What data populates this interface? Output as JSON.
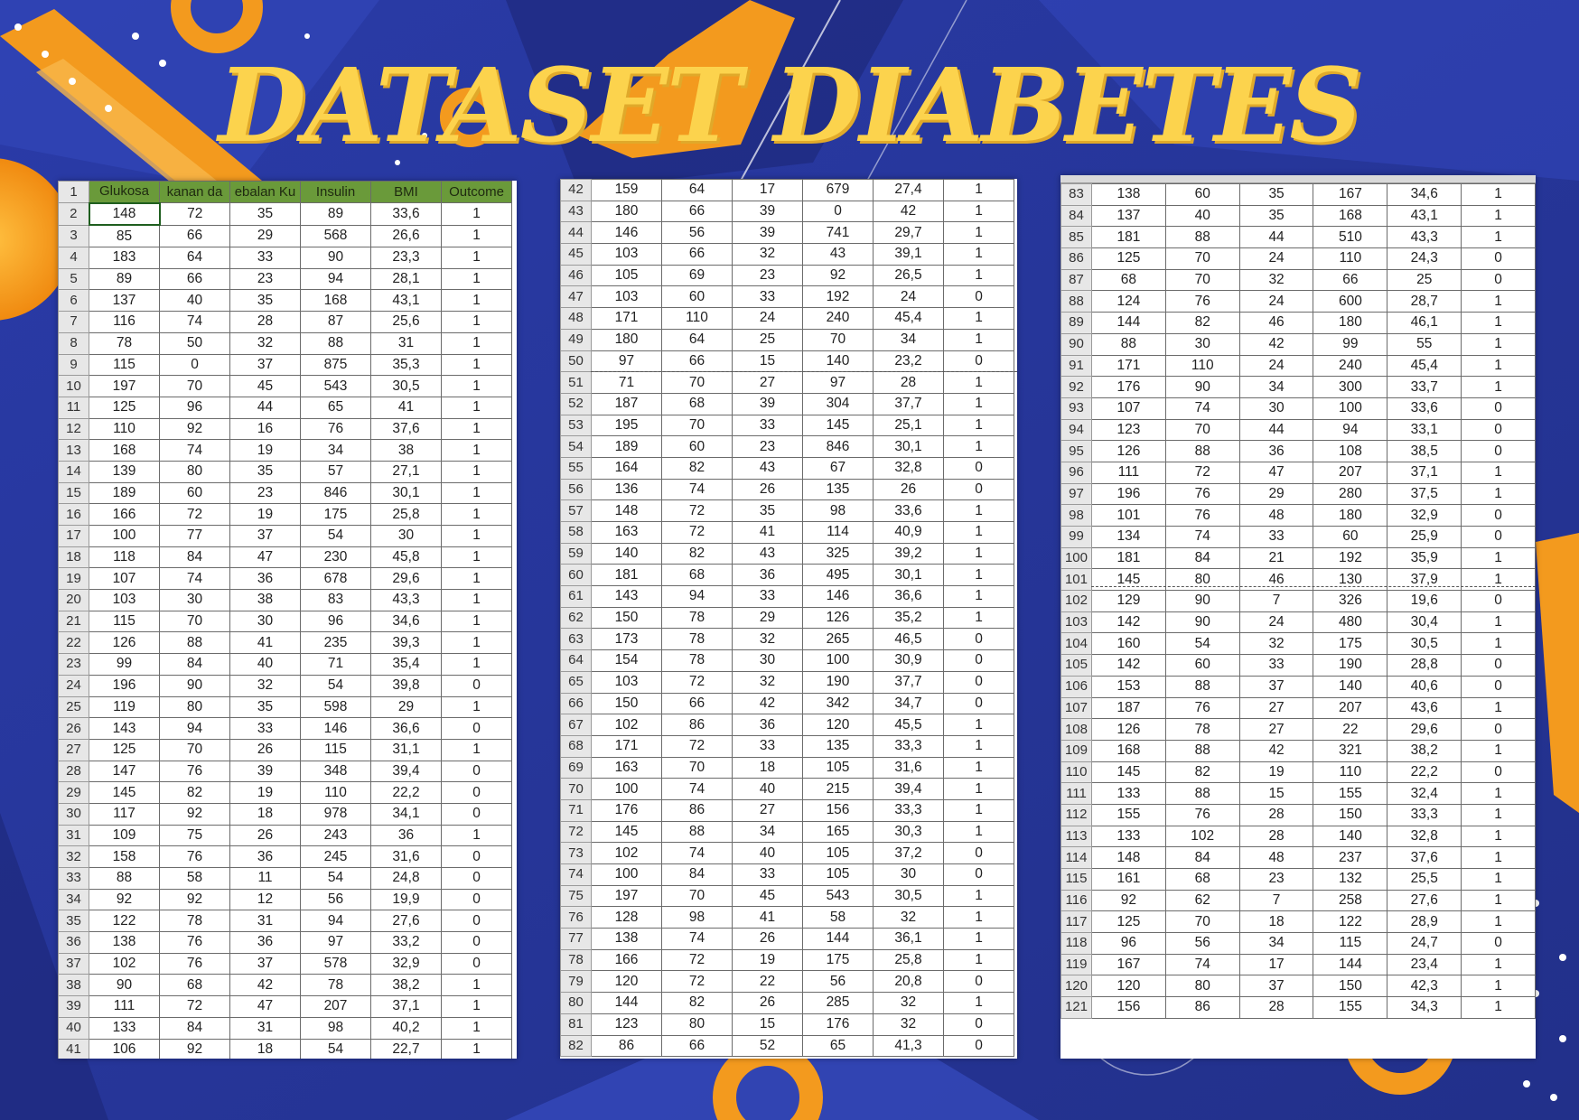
{
  "title": "DATASET DIABETES",
  "colors": {
    "background": "#2b3a9c",
    "title": "#fcd34d",
    "header_fill": "#6a9a3a",
    "accent_orange": "#f39a1e"
  },
  "sheet1": {
    "headers": [
      "Glukosa",
      "kanan da",
      "ebalan Ku",
      "Insulin",
      "BMI",
      "Outcome"
    ],
    "header_row": "1",
    "rows": [
      [
        "2",
        "148",
        "72",
        "35",
        "89",
        "33,6",
        "1"
      ],
      [
        "3",
        "85",
        "66",
        "29",
        "568",
        "26,6",
        "1"
      ],
      [
        "4",
        "183",
        "64",
        "33",
        "90",
        "23,3",
        "1"
      ],
      [
        "5",
        "89",
        "66",
        "23",
        "94",
        "28,1",
        "1"
      ],
      [
        "6",
        "137",
        "40",
        "35",
        "168",
        "43,1",
        "1"
      ],
      [
        "7",
        "116",
        "74",
        "28",
        "87",
        "25,6",
        "1"
      ],
      [
        "8",
        "78",
        "50",
        "32",
        "88",
        "31",
        "1"
      ],
      [
        "9",
        "115",
        "0",
        "37",
        "875",
        "35,3",
        "1"
      ],
      [
        "10",
        "197",
        "70",
        "45",
        "543",
        "30,5",
        "1"
      ],
      [
        "11",
        "125",
        "96",
        "44",
        "65",
        "41",
        "1"
      ],
      [
        "12",
        "110",
        "92",
        "16",
        "76",
        "37,6",
        "1"
      ],
      [
        "13",
        "168",
        "74",
        "19",
        "34",
        "38",
        "1"
      ],
      [
        "14",
        "139",
        "80",
        "35",
        "57",
        "27,1",
        "1"
      ],
      [
        "15",
        "189",
        "60",
        "23",
        "846",
        "30,1",
        "1"
      ],
      [
        "16",
        "166",
        "72",
        "19",
        "175",
        "25,8",
        "1"
      ],
      [
        "17",
        "100",
        "77",
        "37",
        "54",
        "30",
        "1"
      ],
      [
        "18",
        "118",
        "84",
        "47",
        "230",
        "45,8",
        "1"
      ],
      [
        "19",
        "107",
        "74",
        "36",
        "678",
        "29,6",
        "1"
      ],
      [
        "20",
        "103",
        "30",
        "38",
        "83",
        "43,3",
        "1"
      ],
      [
        "21",
        "115",
        "70",
        "30",
        "96",
        "34,6",
        "1"
      ],
      [
        "22",
        "126",
        "88",
        "41",
        "235",
        "39,3",
        "1"
      ],
      [
        "23",
        "99",
        "84",
        "40",
        "71",
        "35,4",
        "1"
      ],
      [
        "24",
        "196",
        "90",
        "32",
        "54",
        "39,8",
        "0"
      ],
      [
        "25",
        "119",
        "80",
        "35",
        "598",
        "29",
        "1"
      ],
      [
        "26",
        "143",
        "94",
        "33",
        "146",
        "36,6",
        "0"
      ],
      [
        "27",
        "125",
        "70",
        "26",
        "115",
        "31,1",
        "1"
      ],
      [
        "28",
        "147",
        "76",
        "39",
        "348",
        "39,4",
        "0"
      ],
      [
        "29",
        "145",
        "82",
        "19",
        "110",
        "22,2",
        "0"
      ],
      [
        "30",
        "117",
        "92",
        "18",
        "978",
        "34,1",
        "0"
      ],
      [
        "31",
        "109",
        "75",
        "26",
        "243",
        "36",
        "1"
      ],
      [
        "32",
        "158",
        "76",
        "36",
        "245",
        "31,6",
        "0"
      ],
      [
        "33",
        "88",
        "58",
        "11",
        "54",
        "24,8",
        "0"
      ],
      [
        "34",
        "92",
        "92",
        "12",
        "56",
        "19,9",
        "0"
      ],
      [
        "35",
        "122",
        "78",
        "31",
        "94",
        "27,6",
        "0"
      ],
      [
        "36",
        "138",
        "76",
        "36",
        "97",
        "33,2",
        "0"
      ],
      [
        "37",
        "102",
        "76",
        "37",
        "578",
        "32,9",
        "0"
      ],
      [
        "38",
        "90",
        "68",
        "42",
        "78",
        "38,2",
        "1"
      ],
      [
        "39",
        "111",
        "72",
        "47",
        "207",
        "37,1",
        "1"
      ],
      [
        "40",
        "133",
        "84",
        "31",
        "98",
        "40,2",
        "1"
      ],
      [
        "41",
        "106",
        "92",
        "18",
        "54",
        "22,7",
        "1"
      ]
    ]
  },
  "sheet2": {
    "rows": [
      [
        "42",
        "159",
        "64",
        "17",
        "679",
        "27,4",
        "1"
      ],
      [
        "43",
        "180",
        "66",
        "39",
        "0",
        "42",
        "1"
      ],
      [
        "44",
        "146",
        "56",
        "39",
        "741",
        "29,7",
        "1"
      ],
      [
        "45",
        "103",
        "66",
        "32",
        "43",
        "39,1",
        "1"
      ],
      [
        "46",
        "105",
        "69",
        "23",
        "92",
        "26,5",
        "1"
      ],
      [
        "47",
        "103",
        "60",
        "33",
        "192",
        "24",
        "0"
      ],
      [
        "48",
        "171",
        "110",
        "24",
        "240",
        "45,4",
        "1"
      ],
      [
        "49",
        "180",
        "64",
        "25",
        "70",
        "34",
        "1"
      ],
      [
        "50",
        "97",
        "66",
        "15",
        "140",
        "23,2",
        "0"
      ],
      [
        "51",
        "71",
        "70",
        "27",
        "97",
        "28",
        "1"
      ],
      [
        "52",
        "187",
        "68",
        "39",
        "304",
        "37,7",
        "1"
      ],
      [
        "53",
        "195",
        "70",
        "33",
        "145",
        "25,1",
        "1"
      ],
      [
        "54",
        "189",
        "60",
        "23",
        "846",
        "30,1",
        "1"
      ],
      [
        "55",
        "164",
        "82",
        "43",
        "67",
        "32,8",
        "0"
      ],
      [
        "56",
        "136",
        "74",
        "26",
        "135",
        "26",
        "0"
      ],
      [
        "57",
        "148",
        "72",
        "35",
        "98",
        "33,6",
        "1"
      ],
      [
        "58",
        "163",
        "72",
        "41",
        "114",
        "40,9",
        "1"
      ],
      [
        "59",
        "140",
        "82",
        "43",
        "325",
        "39,2",
        "1"
      ],
      [
        "60",
        "181",
        "68",
        "36",
        "495",
        "30,1",
        "1"
      ],
      [
        "61",
        "143",
        "94",
        "33",
        "146",
        "36,6",
        "1"
      ],
      [
        "62",
        "150",
        "78",
        "29",
        "126",
        "35,2",
        "1"
      ],
      [
        "63",
        "173",
        "78",
        "32",
        "265",
        "46,5",
        "0"
      ],
      [
        "64",
        "154",
        "78",
        "30",
        "100",
        "30,9",
        "0"
      ],
      [
        "65",
        "103",
        "72",
        "32",
        "190",
        "37,7",
        "0"
      ],
      [
        "66",
        "150",
        "66",
        "42",
        "342",
        "34,7",
        "0"
      ],
      [
        "67",
        "102",
        "86",
        "36",
        "120",
        "45,5",
        "1"
      ],
      [
        "68",
        "171",
        "72",
        "33",
        "135",
        "33,3",
        "1"
      ],
      [
        "69",
        "163",
        "70",
        "18",
        "105",
        "31,6",
        "1"
      ],
      [
        "70",
        "100",
        "74",
        "40",
        "215",
        "39,4",
        "1"
      ],
      [
        "71",
        "176",
        "86",
        "27",
        "156",
        "33,3",
        "1"
      ],
      [
        "72",
        "145",
        "88",
        "34",
        "165",
        "30,3",
        "1"
      ],
      [
        "73",
        "102",
        "74",
        "40",
        "105",
        "37,2",
        "0"
      ],
      [
        "74",
        "100",
        "84",
        "33",
        "105",
        "30",
        "0"
      ],
      [
        "75",
        "197",
        "70",
        "45",
        "543",
        "30,5",
        "1"
      ],
      [
        "76",
        "128",
        "98",
        "41",
        "58",
        "32",
        "1"
      ],
      [
        "77",
        "138",
        "74",
        "26",
        "144",
        "36,1",
        "1"
      ],
      [
        "78",
        "166",
        "72",
        "19",
        "175",
        "25,8",
        "1"
      ],
      [
        "79",
        "120",
        "72",
        "22",
        "56",
        "20,8",
        "0"
      ],
      [
        "80",
        "144",
        "82",
        "26",
        "285",
        "32",
        "1"
      ],
      [
        "81",
        "123",
        "80",
        "15",
        "176",
        "32",
        "0"
      ],
      [
        "82",
        "86",
        "66",
        "52",
        "65",
        "41,3",
        "0"
      ]
    ]
  },
  "sheet3": {
    "rows": [
      [
        "83",
        "138",
        "60",
        "35",
        "167",
        "34,6",
        "1"
      ],
      [
        "84",
        "137",
        "40",
        "35",
        "168",
        "43,1",
        "1"
      ],
      [
        "85",
        "181",
        "88",
        "44",
        "510",
        "43,3",
        "1"
      ],
      [
        "86",
        "125",
        "70",
        "24",
        "110",
        "24,3",
        "0"
      ],
      [
        "87",
        "68",
        "70",
        "32",
        "66",
        "25",
        "0"
      ],
      [
        "88",
        "124",
        "76",
        "24",
        "600",
        "28,7",
        "1"
      ],
      [
        "89",
        "144",
        "82",
        "46",
        "180",
        "46,1",
        "1"
      ],
      [
        "90",
        "88",
        "30",
        "42",
        "99",
        "55",
        "1"
      ],
      [
        "91",
        "171",
        "110",
        "24",
        "240",
        "45,4",
        "1"
      ],
      [
        "92",
        "176",
        "90",
        "34",
        "300",
        "33,7",
        "1"
      ],
      [
        "93",
        "107",
        "74",
        "30",
        "100",
        "33,6",
        "0"
      ],
      [
        "94",
        "123",
        "70",
        "44",
        "94",
        "33,1",
        "0"
      ],
      [
        "95",
        "126",
        "88",
        "36",
        "108",
        "38,5",
        "0"
      ],
      [
        "96",
        "111",
        "72",
        "47",
        "207",
        "37,1",
        "1"
      ],
      [
        "97",
        "196",
        "76",
        "29",
        "280",
        "37,5",
        "1"
      ],
      [
        "98",
        "101",
        "76",
        "48",
        "180",
        "32,9",
        "0"
      ],
      [
        "99",
        "134",
        "74",
        "33",
        "60",
        "25,9",
        "0"
      ],
      [
        "100",
        "181",
        "84",
        "21",
        "192",
        "35,9",
        "1"
      ],
      [
        "101",
        "145",
        "80",
        "46",
        "130",
        "37,9",
        "1"
      ],
      [
        "102",
        "129",
        "90",
        "7",
        "326",
        "19,6",
        "0"
      ],
      [
        "103",
        "142",
        "90",
        "24",
        "480",
        "30,4",
        "1"
      ],
      [
        "104",
        "160",
        "54",
        "32",
        "175",
        "30,5",
        "1"
      ],
      [
        "105",
        "142",
        "60",
        "33",
        "190",
        "28,8",
        "0"
      ],
      [
        "106",
        "153",
        "88",
        "37",
        "140",
        "40,6",
        "0"
      ],
      [
        "107",
        "187",
        "76",
        "27",
        "207",
        "43,6",
        "1"
      ],
      [
        "108",
        "126",
        "78",
        "27",
        "22",
        "29,6",
        "0"
      ],
      [
        "109",
        "168",
        "88",
        "42",
        "321",
        "38,2",
        "1"
      ],
      [
        "110",
        "145",
        "82",
        "19",
        "110",
        "22,2",
        "0"
      ],
      [
        "111",
        "133",
        "88",
        "15",
        "155",
        "32,4",
        "1"
      ],
      [
        "112",
        "155",
        "76",
        "28",
        "150",
        "33,3",
        "1"
      ],
      [
        "113",
        "133",
        "102",
        "28",
        "140",
        "32,8",
        "1"
      ],
      [
        "114",
        "148",
        "84",
        "48",
        "237",
        "37,6",
        "1"
      ],
      [
        "115",
        "161",
        "68",
        "23",
        "132",
        "25,5",
        "1"
      ],
      [
        "116",
        "92",
        "62",
        "7",
        "258",
        "27,6",
        "1"
      ],
      [
        "117",
        "125",
        "70",
        "18",
        "122",
        "28,9",
        "1"
      ],
      [
        "118",
        "96",
        "56",
        "34",
        "115",
        "24,7",
        "0"
      ],
      [
        "119",
        "167",
        "74",
        "17",
        "144",
        "23,4",
        "1"
      ],
      [
        "120",
        "120",
        "80",
        "37",
        "150",
        "42,3",
        "1"
      ],
      [
        "121",
        "156",
        "86",
        "28",
        "155",
        "34,3",
        "1"
      ]
    ]
  }
}
